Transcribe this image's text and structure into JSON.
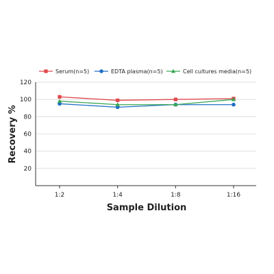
{
  "chart_data": {
    "type": "line",
    "categories": [
      "1:2",
      "1:4",
      "1:8",
      "1:16"
    ],
    "series": [
      {
        "name": "Serum(n=5)",
        "values": [
          103,
          99,
          100,
          101
        ],
        "color": "#e0484a",
        "marker": "square"
      },
      {
        "name": "EDTA plasma(n=5)",
        "values": [
          95,
          91,
          94,
          94
        ],
        "color": "#1f6fc5",
        "marker": "circle"
      },
      {
        "name": "Cell cultures media(n=5)",
        "values": [
          98,
          94,
          94,
          100
        ],
        "color": "#3aa655",
        "marker": "triangle"
      }
    ],
    "xlabel": "Sample Dilution",
    "ylabel": "Recovery %",
    "ylim": [
      0,
      120
    ],
    "yticks": [
      20,
      40,
      60,
      80,
      100,
      120
    ],
    "grid": true,
    "legend_position": "top"
  }
}
